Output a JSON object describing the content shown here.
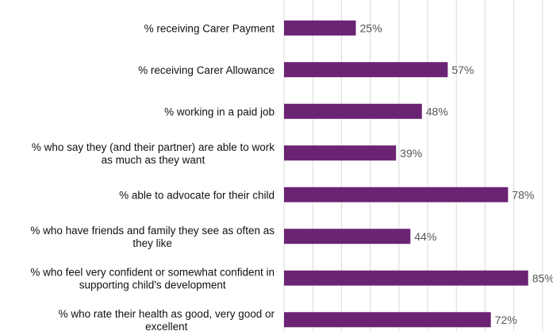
{
  "chart_data": {
    "type": "bar",
    "orientation": "horizontal",
    "categories": [
      "% receiving Carer Payment",
      "% receiving Carer Allowance",
      "% working in a paid job",
      "% who say they (and their partner) are able to work as much as they want",
      "% able to advocate for their child",
      "% who have friends and family they see as often as they like",
      "% who feel very confident or somewhat confident in supporting child's development",
      "% who rate their health as good, very good or excellent"
    ],
    "category_lines": [
      [
        "% receiving Carer Payment"
      ],
      [
        "% receiving Carer Allowance"
      ],
      [
        "% working in a paid job"
      ],
      [
        "% who say they (and their partner) are able to work",
        "as much as they want"
      ],
      [
        "% able to advocate for their child"
      ],
      [
        "% who have friends and family they see as often as",
        "they like"
      ],
      [
        "% who feel very confident or somewhat confident in",
        "supporting child's development"
      ],
      [
        "% who rate their health as good, very good or",
        "excellent"
      ]
    ],
    "values": [
      25,
      57,
      48,
      39,
      78,
      44,
      85,
      72
    ],
    "data_labels": [
      "25%",
      "57%",
      "48%",
      "39%",
      "78%",
      "44%",
      "85%",
      "72%"
    ],
    "xlim": [
      0,
      90
    ],
    "grid": true,
    "bar_color": "#6b2373",
    "grid_color": "#d9d9d9",
    "label_color": "#111111",
    "value_label_color": "#555555"
  }
}
